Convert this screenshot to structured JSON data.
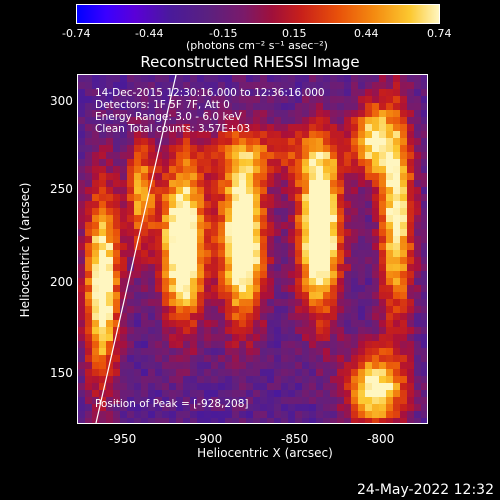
{
  "colorbar": {
    "ticks": [
      "-0.74",
      "-0.44",
      "-0.15",
      "0.15",
      "0.44",
      "0.74"
    ],
    "units": "(photons cm⁻² s⁻¹ asec⁻²)"
  },
  "plot": {
    "title": "Reconstructed RHESSI Image",
    "info_lines": [
      "14-Dec-2015 12:30:16.000 to 12:36:16.000",
      "Detectors: 1F 5F 7F, Att 0",
      "Energy Range: 3.0 - 6.0 keV",
      "Clean     Total counts: 3.57E+03"
    ],
    "peak_text": "Position of Peak = [-928,208]",
    "xlabel": "Heliocentric X (arcsec)",
    "ylabel": "Heliocentric Y (arcsec)",
    "xticks": [
      "-950",
      "-900",
      "-850",
      "-800"
    ],
    "yticks": [
      "300",
      "250",
      "200",
      "150"
    ]
  },
  "footer": {
    "date": "24-May-2022 12:32"
  },
  "colors": {
    "background": "#000000",
    "foreground": "#ffffff",
    "palette": [
      "#0000ff",
      "#4a1a9a",
      "#7a1a6a",
      "#c8201a",
      "#f48a10",
      "#fcc830",
      "#fff6c0"
    ]
  }
}
